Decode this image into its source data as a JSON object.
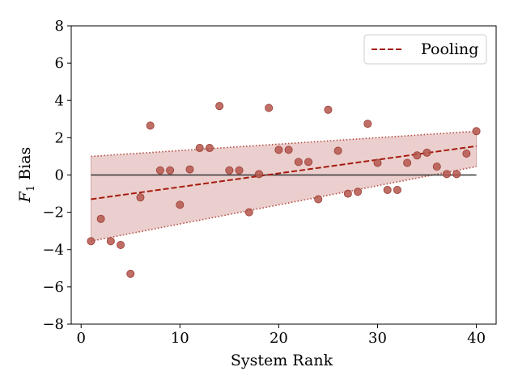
{
  "chart_data": {
    "type": "scatter",
    "title": "",
    "xlabel": "System Rank",
    "ylabel_main": "F",
    "ylabel_sub": "1",
    "ylabel_rest": " Bias",
    "xlim": [
      -1,
      42
    ],
    "ylim": [
      -8,
      8
    ],
    "x_ticks": [
      0,
      10,
      20,
      30,
      40
    ],
    "y_ticks": [
      -8,
      -6,
      -4,
      -2,
      0,
      2,
      4,
      6,
      8
    ],
    "y_tick_labels": [
      "−8",
      "−6",
      "−4",
      "−2",
      "0",
      "2",
      "4",
      "6",
      "8"
    ],
    "grid": false,
    "legend_position": "top-right",
    "legend": [
      {
        "label": "Pooling",
        "style": "dashed",
        "color": "#a61c0e"
      }
    ],
    "zero_line": {
      "x": [
        1,
        40
      ],
      "y": 0,
      "color": "#333333"
    },
    "trend_line": {
      "x": [
        1,
        40
      ],
      "y": [
        -1.3,
        1.55
      ],
      "color": "#a61c0e"
    },
    "band": {
      "x": [
        1,
        40
      ],
      "upper": [
        1.0,
        2.35
      ],
      "lower": [
        -3.55,
        0.45
      ],
      "fill": "#d9a8a5",
      "edge": "#b54b40"
    },
    "points_color": "#b5564c",
    "points": [
      [
        1,
        -3.55
      ],
      [
        2,
        -2.35
      ],
      [
        3,
        -3.55
      ],
      [
        4,
        -3.75
      ],
      [
        5,
        -5.3
      ],
      [
        6,
        -1.2
      ],
      [
        7,
        2.65
      ],
      [
        8,
        0.25
      ],
      [
        9,
        0.25
      ],
      [
        10,
        -1.6
      ],
      [
        11,
        0.3
      ],
      [
        12,
        1.45
      ],
      [
        13,
        1.45
      ],
      [
        14,
        3.7
      ],
      [
        15,
        0.25
      ],
      [
        16,
        0.25
      ],
      [
        17,
        -2.0
      ],
      [
        18,
        0.05
      ],
      [
        19,
        3.6
      ],
      [
        20,
        1.35
      ],
      [
        21,
        1.35
      ],
      [
        22,
        0.7
      ],
      [
        23,
        0.7
      ],
      [
        24,
        -1.3
      ],
      [
        25,
        3.5
      ],
      [
        26,
        1.3
      ],
      [
        27,
        -1.0
      ],
      [
        28,
        -0.9
      ],
      [
        29,
        2.75
      ],
      [
        30,
        0.65
      ],
      [
        31,
        -0.8
      ],
      [
        32,
        -0.8
      ],
      [
        33,
        0.65
      ],
      [
        34,
        1.05
      ],
      [
        35,
        1.2
      ],
      [
        36,
        0.45
      ],
      [
        37,
        0.05
      ],
      [
        38,
        0.05
      ],
      [
        39,
        1.15
      ],
      [
        40,
        2.35
      ]
    ]
  }
}
